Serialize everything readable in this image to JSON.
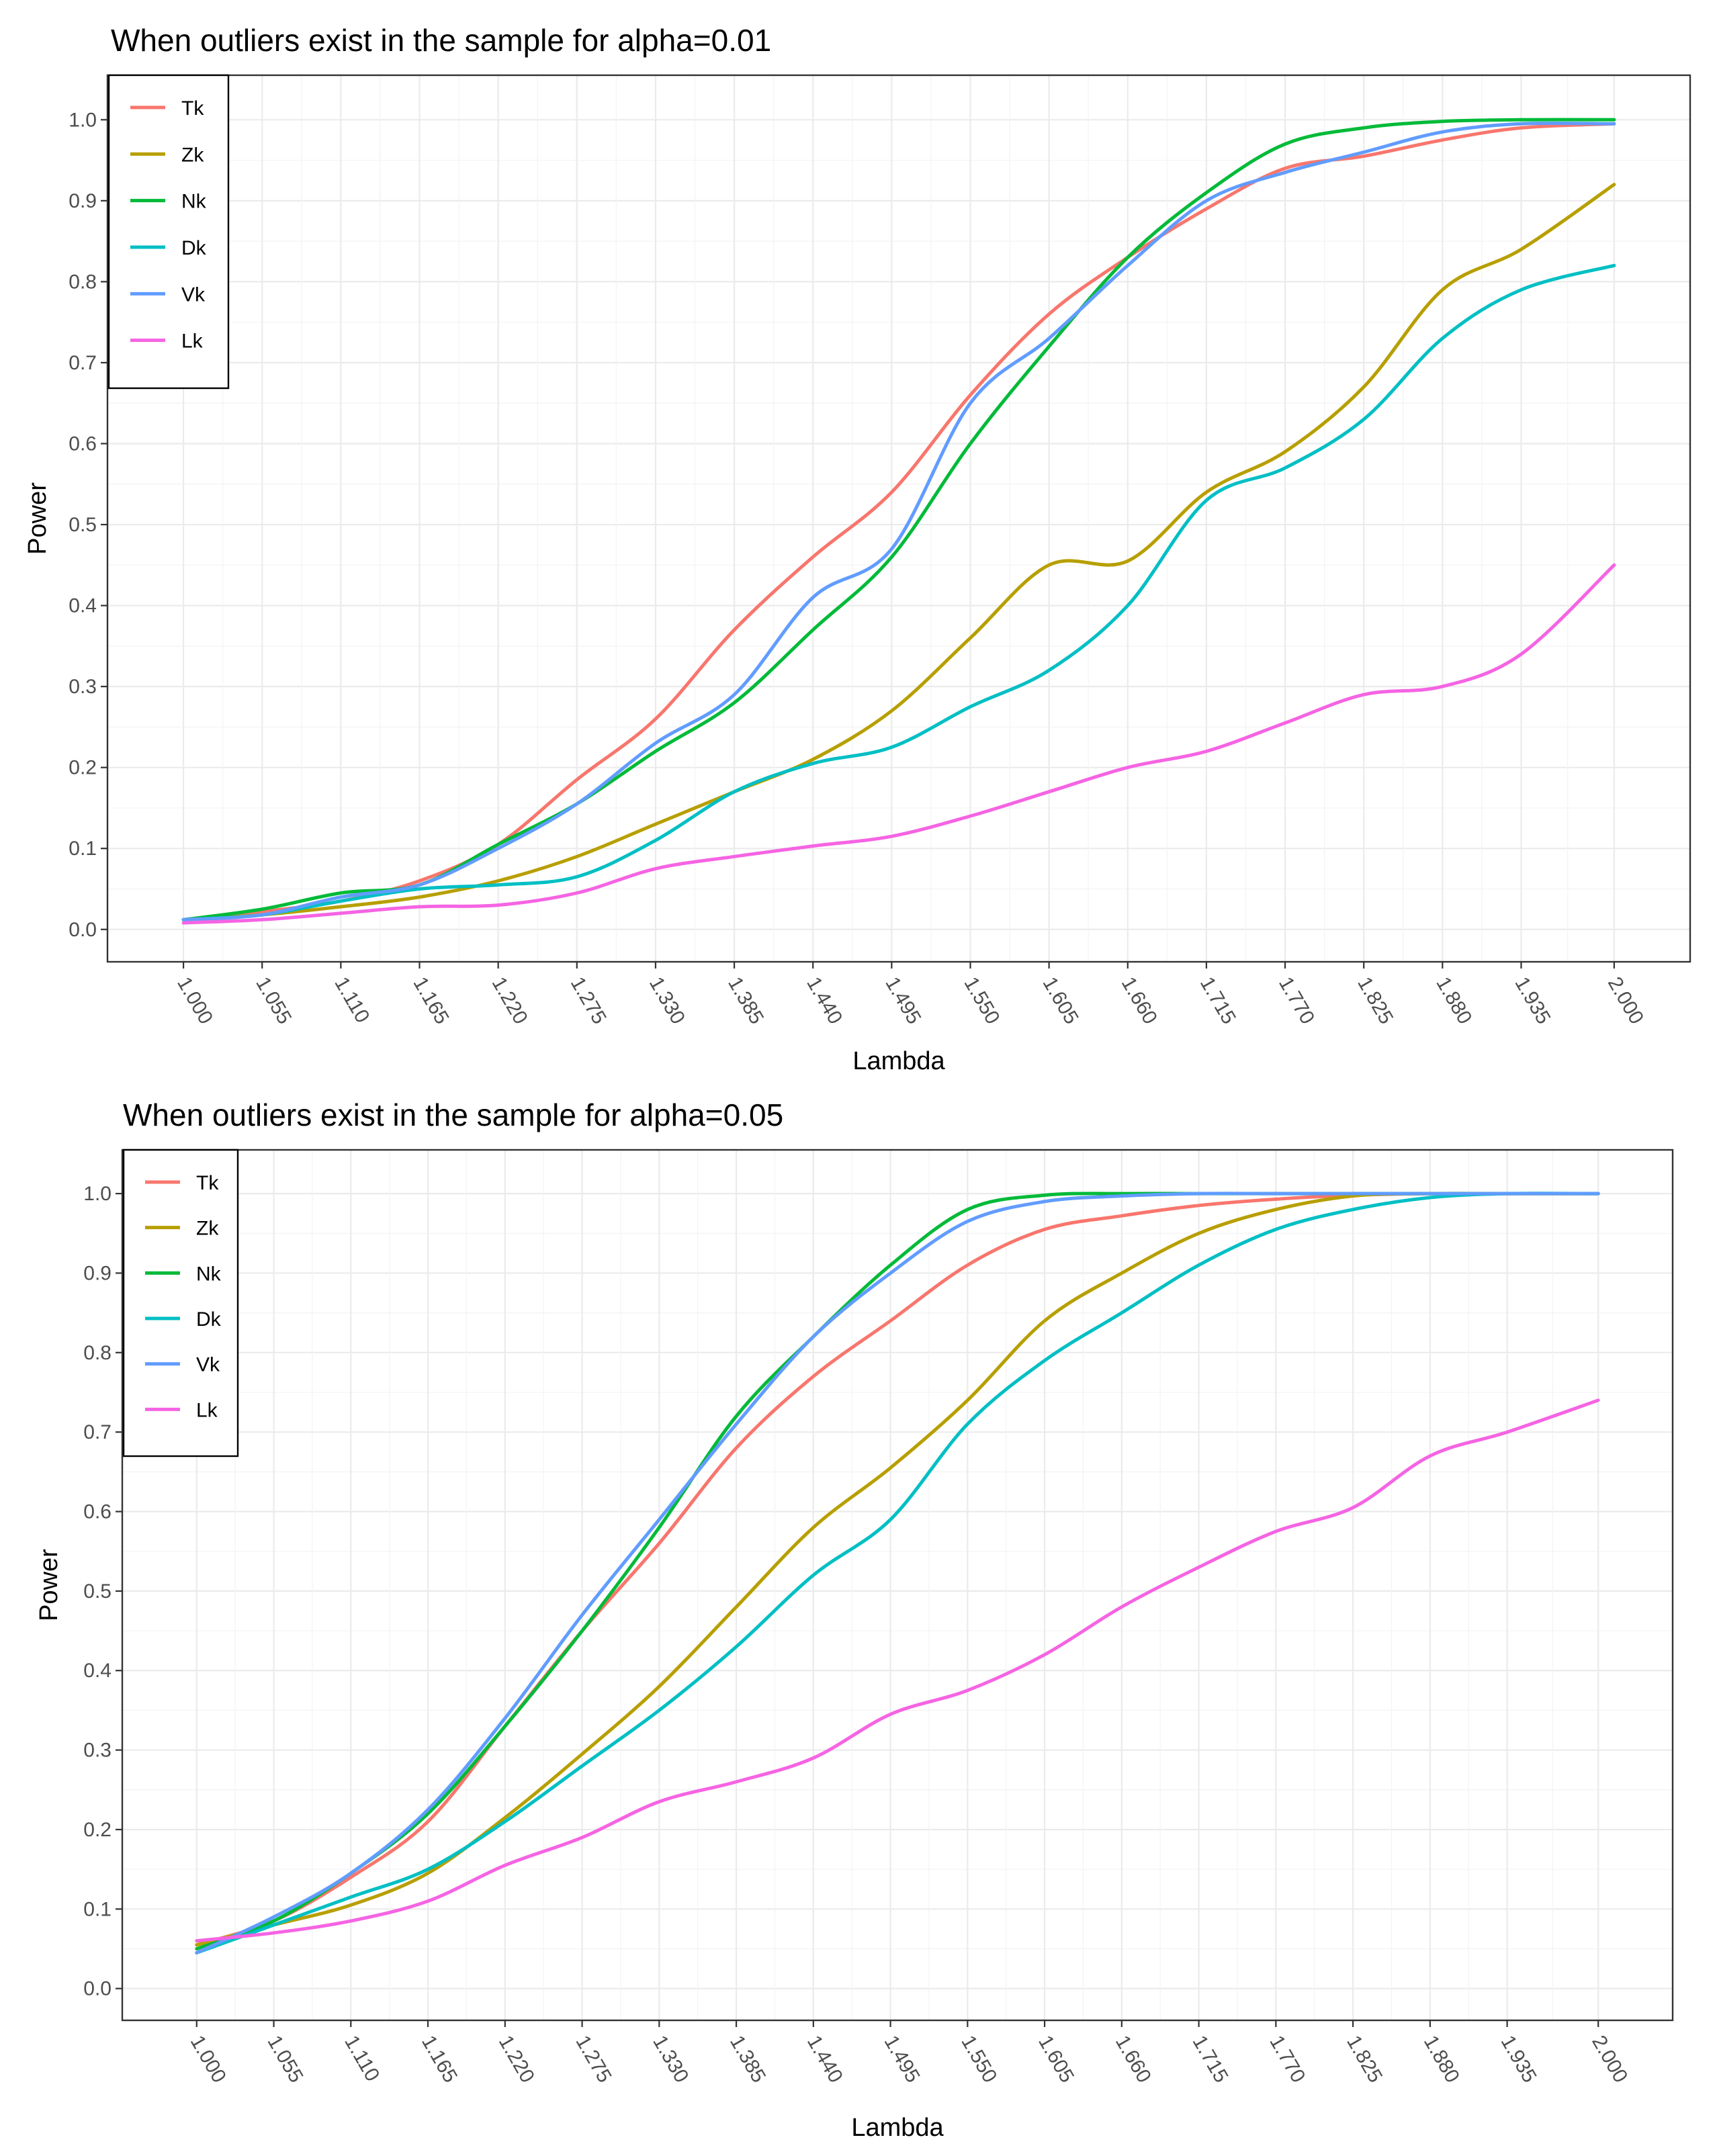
{
  "chart_data": [
    {
      "type": "line",
      "title": "When outliers exist in the sample for alpha=0.01",
      "xlabel": "Lambda",
      "ylabel": "Power",
      "xlim": [
        1.0,
        2.0
      ],
      "ylim": [
        0.0,
        1.0
      ],
      "grid": true,
      "legend_position": "top-left",
      "x_ticks": [
        "1.000",
        "1.055",
        "1.110",
        "1.165",
        "1.220",
        "1.275",
        "1.330",
        "1.385",
        "1.440",
        "1.495",
        "1.550",
        "1.605",
        "1.660",
        "1.715",
        "1.770",
        "1.825",
        "1.880",
        "1.935",
        "2.000"
      ],
      "y_ticks": [
        "0.0",
        "0.1",
        "0.2",
        "0.3",
        "0.4",
        "0.5",
        "0.6",
        "0.7",
        "0.8",
        "0.9",
        "1.0"
      ],
      "x": [
        1.0,
        1.055,
        1.11,
        1.165,
        1.22,
        1.275,
        1.33,
        1.385,
        1.44,
        1.495,
        1.55,
        1.605,
        1.66,
        1.715,
        1.77,
        1.825,
        1.88,
        1.935,
        2.0
      ],
      "series": [
        {
          "name": "Tk",
          "color": "#F8766D",
          "values": [
            0.012,
            0.022,
            0.035,
            0.06,
            0.105,
            0.185,
            0.26,
            0.37,
            0.46,
            0.54,
            0.66,
            0.76,
            0.83,
            0.89,
            0.94,
            0.955,
            0.975,
            0.99,
            0.995
          ]
        },
        {
          "name": "Zk",
          "color": "#B79F00",
          "values": [
            0.012,
            0.018,
            0.028,
            0.04,
            0.06,
            0.09,
            0.13,
            0.17,
            0.21,
            0.27,
            0.36,
            0.45,
            0.455,
            0.54,
            0.59,
            0.67,
            0.79,
            0.84,
            0.92
          ]
        },
        {
          "name": "Nk",
          "color": "#00BA38",
          "values": [
            0.012,
            0.025,
            0.045,
            0.055,
            0.105,
            0.155,
            0.22,
            0.28,
            0.37,
            0.46,
            0.6,
            0.72,
            0.83,
            0.91,
            0.97,
            0.99,
            0.998,
            1.0,
            1.0
          ]
        },
        {
          "name": "Dk",
          "color": "#00BFC4",
          "values": [
            0.012,
            0.018,
            0.035,
            0.05,
            0.055,
            0.065,
            0.11,
            0.17,
            0.205,
            0.225,
            0.275,
            0.32,
            0.4,
            0.53,
            0.57,
            0.63,
            0.73,
            0.79,
            0.82
          ]
        },
        {
          "name": "Vk",
          "color": "#619CFF",
          "values": [
            0.012,
            0.018,
            0.04,
            0.055,
            0.1,
            0.155,
            0.23,
            0.29,
            0.41,
            0.47,
            0.65,
            0.73,
            0.82,
            0.9,
            0.935,
            0.96,
            0.985,
            0.995,
            0.995
          ]
        },
        {
          "name": "Lk",
          "color": "#F564E3",
          "values": [
            0.008,
            0.012,
            0.02,
            0.028,
            0.03,
            0.045,
            0.075,
            0.09,
            0.103,
            0.115,
            0.14,
            0.17,
            0.2,
            0.22,
            0.255,
            0.29,
            0.3,
            0.34,
            0.45
          ]
        }
      ]
    },
    {
      "type": "line",
      "title": "When outliers exist in the sample for alpha=0.05",
      "xlabel": "Lambda",
      "ylabel": "Power",
      "xlim": [
        1.0,
        2.0
      ],
      "ylim": [
        0.0,
        1.0
      ],
      "grid": true,
      "legend_position": "top-left",
      "x_ticks": [
        "1.000",
        "1.055",
        "1.110",
        "1.165",
        "1.220",
        "1.275",
        "1.330",
        "1.385",
        "1.440",
        "1.495",
        "1.550",
        "1.605",
        "1.660",
        "1.715",
        "1.770",
        "1.825",
        "1.880",
        "1.935",
        "2.000"
      ],
      "y_ticks": [
        "0.0",
        "0.1",
        "0.2",
        "0.3",
        "0.4",
        "0.5",
        "0.6",
        "0.7",
        "0.8",
        "0.9",
        "1.0"
      ],
      "x": [
        1.0,
        1.055,
        1.11,
        1.165,
        1.22,
        1.275,
        1.33,
        1.385,
        1.44,
        1.495,
        1.55,
        1.605,
        1.66,
        1.715,
        1.77,
        1.825,
        1.88,
        1.935,
        2.0
      ],
      "series": [
        {
          "name": "Tk",
          "color": "#F8766D",
          "values": [
            0.055,
            0.085,
            0.14,
            0.21,
            0.33,
            0.45,
            0.56,
            0.68,
            0.77,
            0.84,
            0.91,
            0.955,
            0.972,
            0.985,
            0.993,
            0.998,
            1.0,
            1.0,
            1.0
          ]
        },
        {
          "name": "Zk",
          "color": "#B79F00",
          "values": [
            0.055,
            0.08,
            0.105,
            0.145,
            0.215,
            0.295,
            0.38,
            0.48,
            0.58,
            0.655,
            0.74,
            0.84,
            0.9,
            0.95,
            0.98,
            0.997,
            1.0,
            1.0,
            1.0
          ]
        },
        {
          "name": "Nk",
          "color": "#00BA38",
          "values": [
            0.05,
            0.085,
            0.145,
            0.22,
            0.33,
            0.45,
            0.58,
            0.72,
            0.82,
            0.91,
            0.98,
            0.998,
            1.0,
            1.0,
            1.0,
            1.0,
            1.0,
            1.0,
            1.0
          ]
        },
        {
          "name": "Dk",
          "color": "#00BFC4",
          "values": [
            0.045,
            0.08,
            0.115,
            0.15,
            0.21,
            0.28,
            0.35,
            0.43,
            0.52,
            0.59,
            0.71,
            0.79,
            0.85,
            0.91,
            0.955,
            0.98,
            0.995,
            1.0,
            1.0
          ]
        },
        {
          "name": "Vk",
          "color": "#619CFF",
          "values": [
            0.045,
            0.09,
            0.145,
            0.225,
            0.34,
            0.47,
            0.59,
            0.71,
            0.82,
            0.9,
            0.965,
            0.99,
            0.997,
            1.0,
            1.0,
            1.0,
            1.0,
            1.0,
            1.0
          ]
        },
        {
          "name": "Lk",
          "color": "#F564E3",
          "values": [
            0.06,
            0.07,
            0.085,
            0.11,
            0.155,
            0.19,
            0.235,
            0.26,
            0.29,
            0.345,
            0.375,
            0.42,
            0.48,
            0.53,
            0.575,
            0.605,
            0.67,
            0.7,
            0.74
          ]
        }
      ]
    }
  ]
}
